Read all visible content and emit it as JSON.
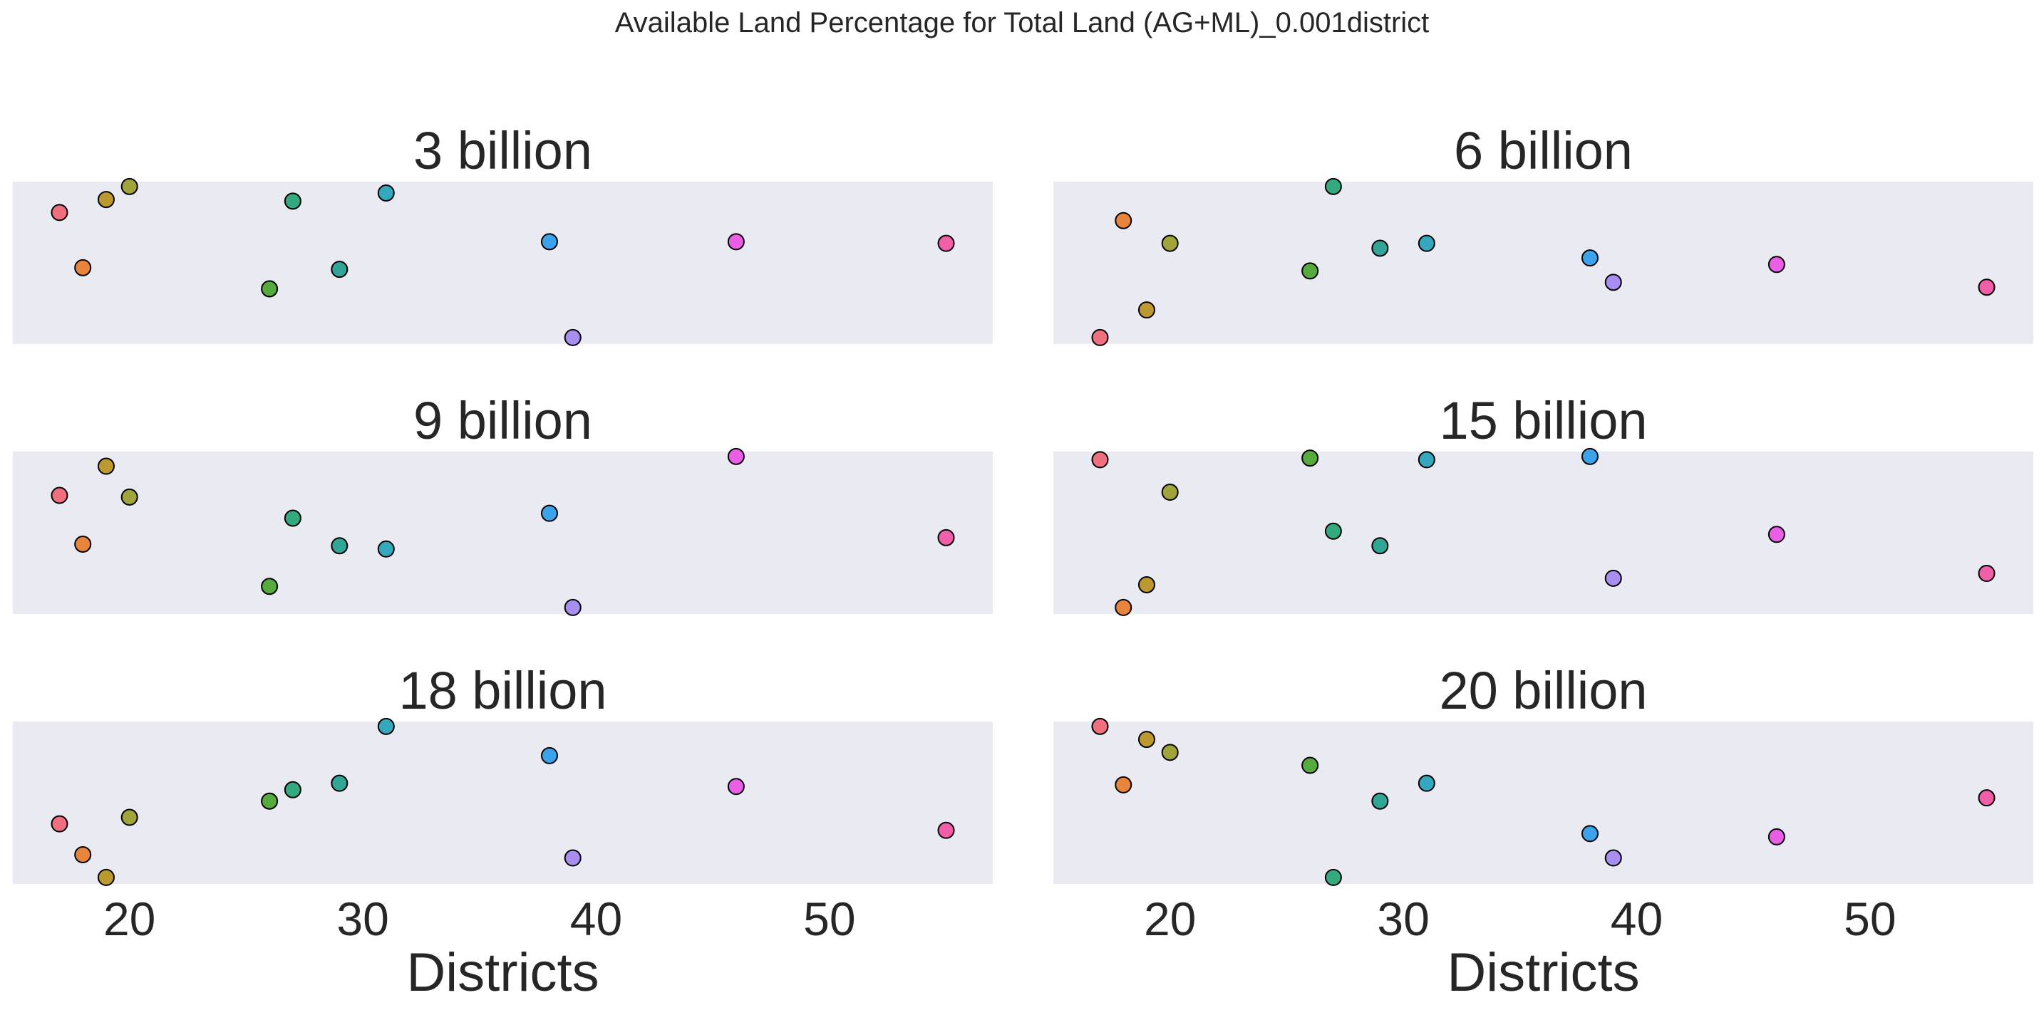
{
  "suptitle": "Available Land Percentage for Total Land (AG+ML)_0.001district",
  "chart_data": [
    {
      "type": "scatter",
      "title": "3 billion",
      "xlabel": "Districts",
      "xlim": [
        15,
        57
      ],
      "xticks": [
        20,
        30,
        40,
        50
      ],
      "grid": false,
      "points": [
        {
          "x": 17,
          "y": 0.81
        },
        {
          "x": 18,
          "y": 0.47
        },
        {
          "x": 19,
          "y": 0.89
        },
        {
          "x": 20,
          "y": 0.97
        },
        {
          "x": 26,
          "y": 0.34
        },
        {
          "x": 27,
          "y": 0.88
        },
        {
          "x": 29,
          "y": 0.46
        },
        {
          "x": 31,
          "y": 0.93
        },
        {
          "x": 38,
          "y": 0.63
        },
        {
          "x": 39,
          "y": 0.04
        },
        {
          "x": 46,
          "y": 0.63
        },
        {
          "x": 55,
          "y": 0.62
        }
      ]
    },
    {
      "type": "scatter",
      "title": "6 billion",
      "xlabel": "Districts",
      "xlim": [
        15,
        57
      ],
      "xticks": [
        20,
        30,
        40,
        50
      ],
      "grid": false,
      "points": [
        {
          "x": 17,
          "y": 0.04
        },
        {
          "x": 18,
          "y": 0.76
        },
        {
          "x": 19,
          "y": 0.21
        },
        {
          "x": 20,
          "y": 0.62
        },
        {
          "x": 26,
          "y": 0.45
        },
        {
          "x": 27,
          "y": 0.97
        },
        {
          "x": 29,
          "y": 0.59
        },
        {
          "x": 31,
          "y": 0.62
        },
        {
          "x": 38,
          "y": 0.53
        },
        {
          "x": 39,
          "y": 0.38
        },
        {
          "x": 46,
          "y": 0.49
        },
        {
          "x": 55,
          "y": 0.35
        }
      ]
    },
    {
      "type": "scatter",
      "title": "9 billion",
      "xlabel": "Districts",
      "xlim": [
        15,
        57
      ],
      "xticks": [
        20,
        30,
        40,
        50
      ],
      "grid": false,
      "points": [
        {
          "x": 17,
          "y": 0.73
        },
        {
          "x": 18,
          "y": 0.43
        },
        {
          "x": 19,
          "y": 0.91
        },
        {
          "x": 20,
          "y": 0.72
        },
        {
          "x": 26,
          "y": 0.17
        },
        {
          "x": 27,
          "y": 0.59
        },
        {
          "x": 29,
          "y": 0.42
        },
        {
          "x": 31,
          "y": 0.4
        },
        {
          "x": 38,
          "y": 0.62
        },
        {
          "x": 39,
          "y": 0.04
        },
        {
          "x": 46,
          "y": 0.97
        },
        {
          "x": 55,
          "y": 0.47
        }
      ]
    },
    {
      "type": "scatter",
      "title": "15 billion",
      "xlabel": "Districts",
      "xlim": [
        15,
        57
      ],
      "xticks": [
        20,
        30,
        40,
        50
      ],
      "grid": false,
      "points": [
        {
          "x": 17,
          "y": 0.95
        },
        {
          "x": 18,
          "y": 0.04
        },
        {
          "x": 19,
          "y": 0.18
        },
        {
          "x": 20,
          "y": 0.75
        },
        {
          "x": 26,
          "y": 0.96
        },
        {
          "x": 27,
          "y": 0.51
        },
        {
          "x": 29,
          "y": 0.42
        },
        {
          "x": 31,
          "y": 0.95
        },
        {
          "x": 38,
          "y": 0.97
        },
        {
          "x": 39,
          "y": 0.22
        },
        {
          "x": 46,
          "y": 0.49
        },
        {
          "x": 55,
          "y": 0.25
        }
      ]
    },
    {
      "type": "scatter",
      "title": "18 billion",
      "xlabel": "Districts",
      "xlim": [
        15,
        57
      ],
      "xticks": [
        20,
        30,
        40,
        50
      ],
      "grid": false,
      "points": [
        {
          "x": 17,
          "y": 0.37
        },
        {
          "x": 18,
          "y": 0.18
        },
        {
          "x": 19,
          "y": 0.04
        },
        {
          "x": 20,
          "y": 0.41
        },
        {
          "x": 26,
          "y": 0.51
        },
        {
          "x": 27,
          "y": 0.58
        },
        {
          "x": 29,
          "y": 0.62
        },
        {
          "x": 31,
          "y": 0.97
        },
        {
          "x": 38,
          "y": 0.79
        },
        {
          "x": 39,
          "y": 0.16
        },
        {
          "x": 46,
          "y": 0.6
        },
        {
          "x": 55,
          "y": 0.33
        }
      ]
    },
    {
      "type": "scatter",
      "title": "20 billion",
      "xlabel": "Districts",
      "xlim": [
        15,
        57
      ],
      "xticks": [
        20,
        30,
        40,
        50
      ],
      "grid": false,
      "points": [
        {
          "x": 17,
          "y": 0.97
        },
        {
          "x": 18,
          "y": 0.61
        },
        {
          "x": 19,
          "y": 0.89
        },
        {
          "x": 20,
          "y": 0.81
        },
        {
          "x": 26,
          "y": 0.73
        },
        {
          "x": 27,
          "y": 0.04
        },
        {
          "x": 29,
          "y": 0.51
        },
        {
          "x": 31,
          "y": 0.62
        },
        {
          "x": 38,
          "y": 0.31
        },
        {
          "x": 39,
          "y": 0.16
        },
        {
          "x": 46,
          "y": 0.29
        },
        {
          "x": 55,
          "y": 0.53
        }
      ]
    }
  ],
  "district_colors": {
    "17": "#f0707f",
    "18": "#e9843d",
    "19": "#bd9a2f",
    "20": "#a1a43a",
    "26": "#55ab3e",
    "27": "#35aa7e",
    "29": "#31a596",
    "31": "#35a8bd",
    "38": "#3ba3ec",
    "39": "#a88ef0",
    "46": "#ea5fe6",
    "55": "#f05fa8"
  },
  "style": {
    "panel_bg": "#eaeaf2",
    "marker_edge": "#000000",
    "text": "#262626"
  }
}
